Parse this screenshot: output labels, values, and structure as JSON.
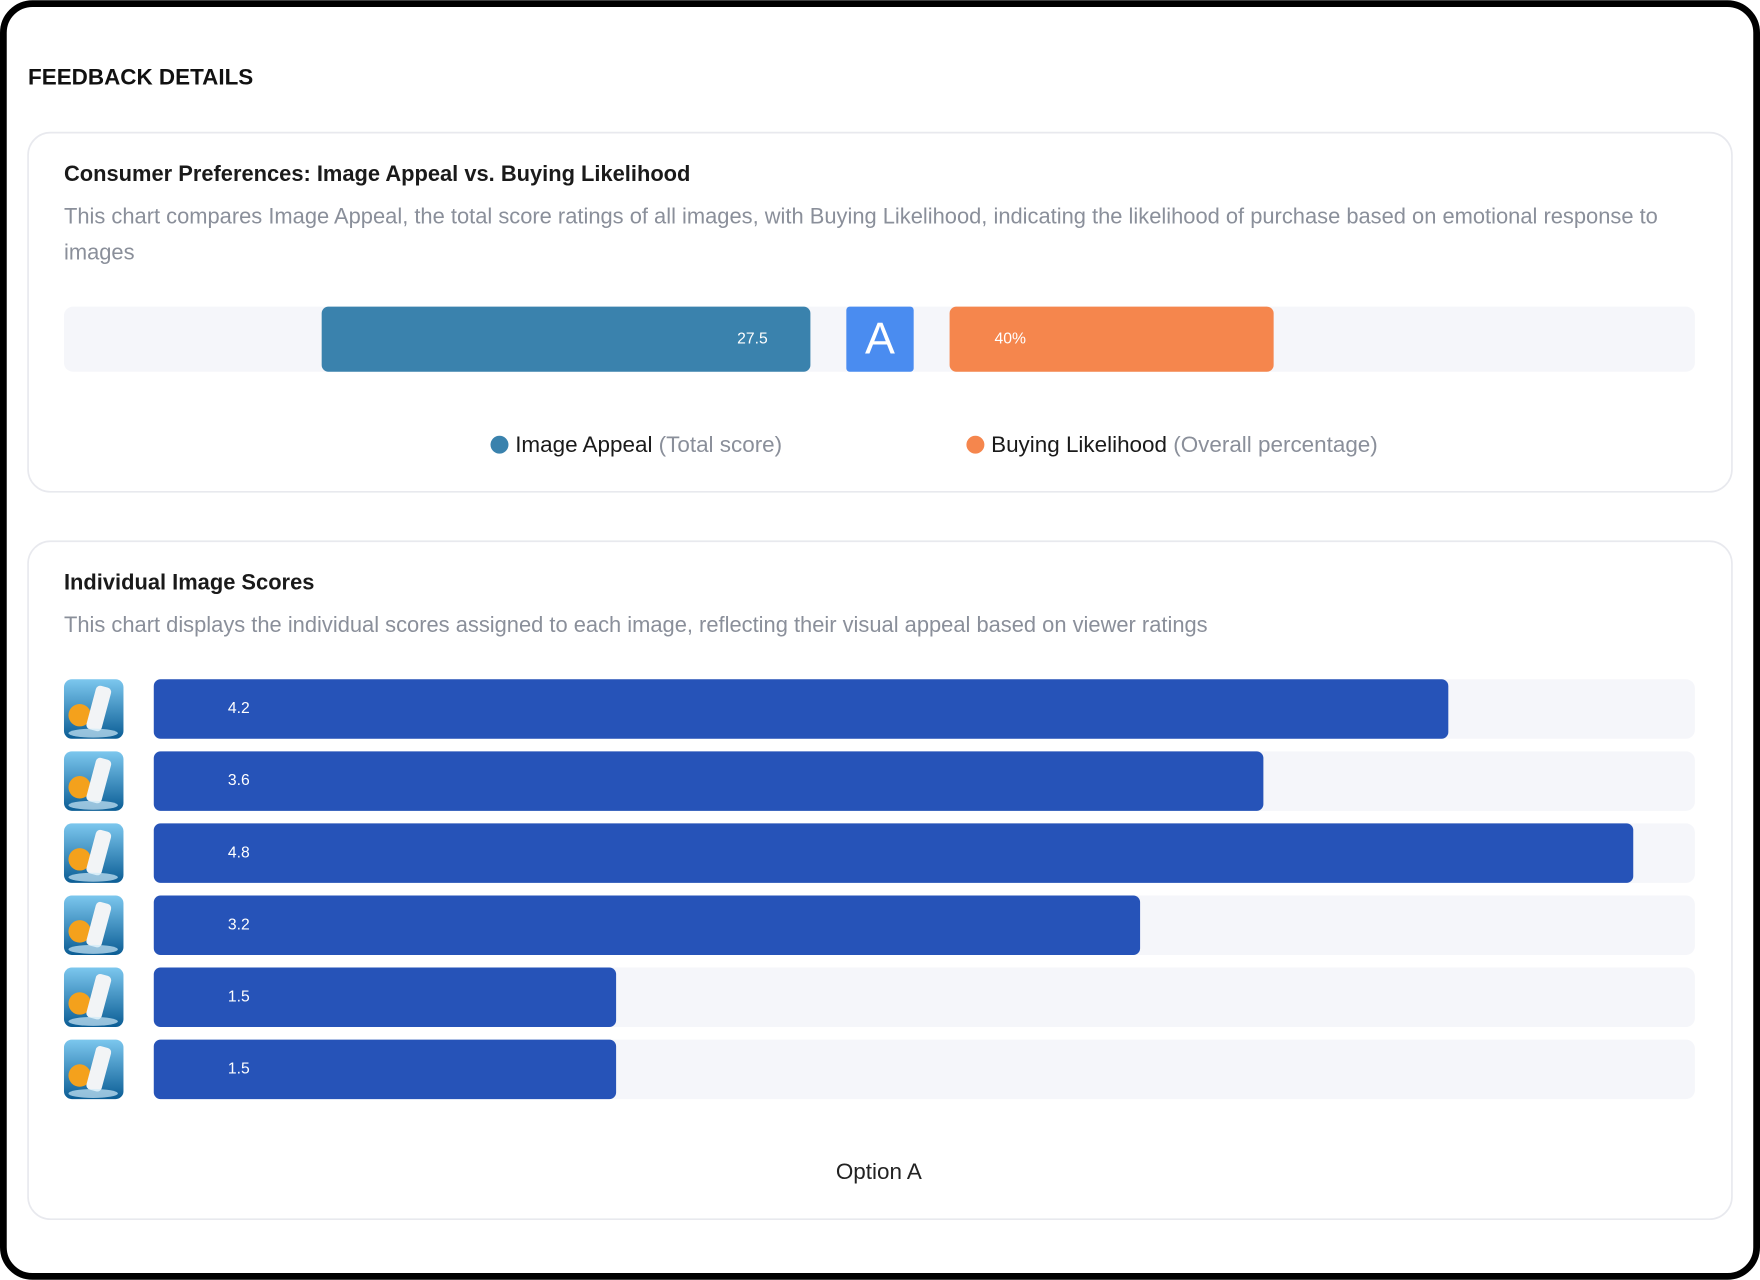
{
  "header": {
    "title": "FEEDBACK DETAILS"
  },
  "chart_data": [
    {
      "type": "diverging-bar",
      "title": "Consumer Preferences: Image Appeal vs. Buying Likelihood",
      "subtitle": "This chart compares Image Appeal, the total score ratings of all images, with Buying Likelihood, indicating the likelihood of purchase based on emotional response to images",
      "center_label": "A",
      "series": [
        {
          "name": "Image Appeal",
          "note": "(Total score)",
          "color": "#3a82ad",
          "values": [
            27.5
          ],
          "xlim": [
            0,
            42
          ]
        },
        {
          "name": "Buying Likelihood",
          "note": "(Overall percentage)",
          "color": "#f5864d",
          "values": [
            40
          ],
          "value_labels": [
            "40%"
          ],
          "xlim": [
            0,
            92
          ]
        }
      ]
    },
    {
      "type": "hbar",
      "title": "Individual Image Scores",
      "subtitle": "This chart displays the individual scores assigned to each image, reflecting their visual appeal based on viewer ratings",
      "categories": [
        null,
        null,
        null,
        null,
        null,
        null
      ],
      "values": [
        4.2,
        3.6,
        4.8,
        3.2,
        1.5,
        1.5
      ],
      "color": "#2653b8",
      "xlim": [
        0,
        5
      ],
      "x_label": "Option A"
    }
  ]
}
